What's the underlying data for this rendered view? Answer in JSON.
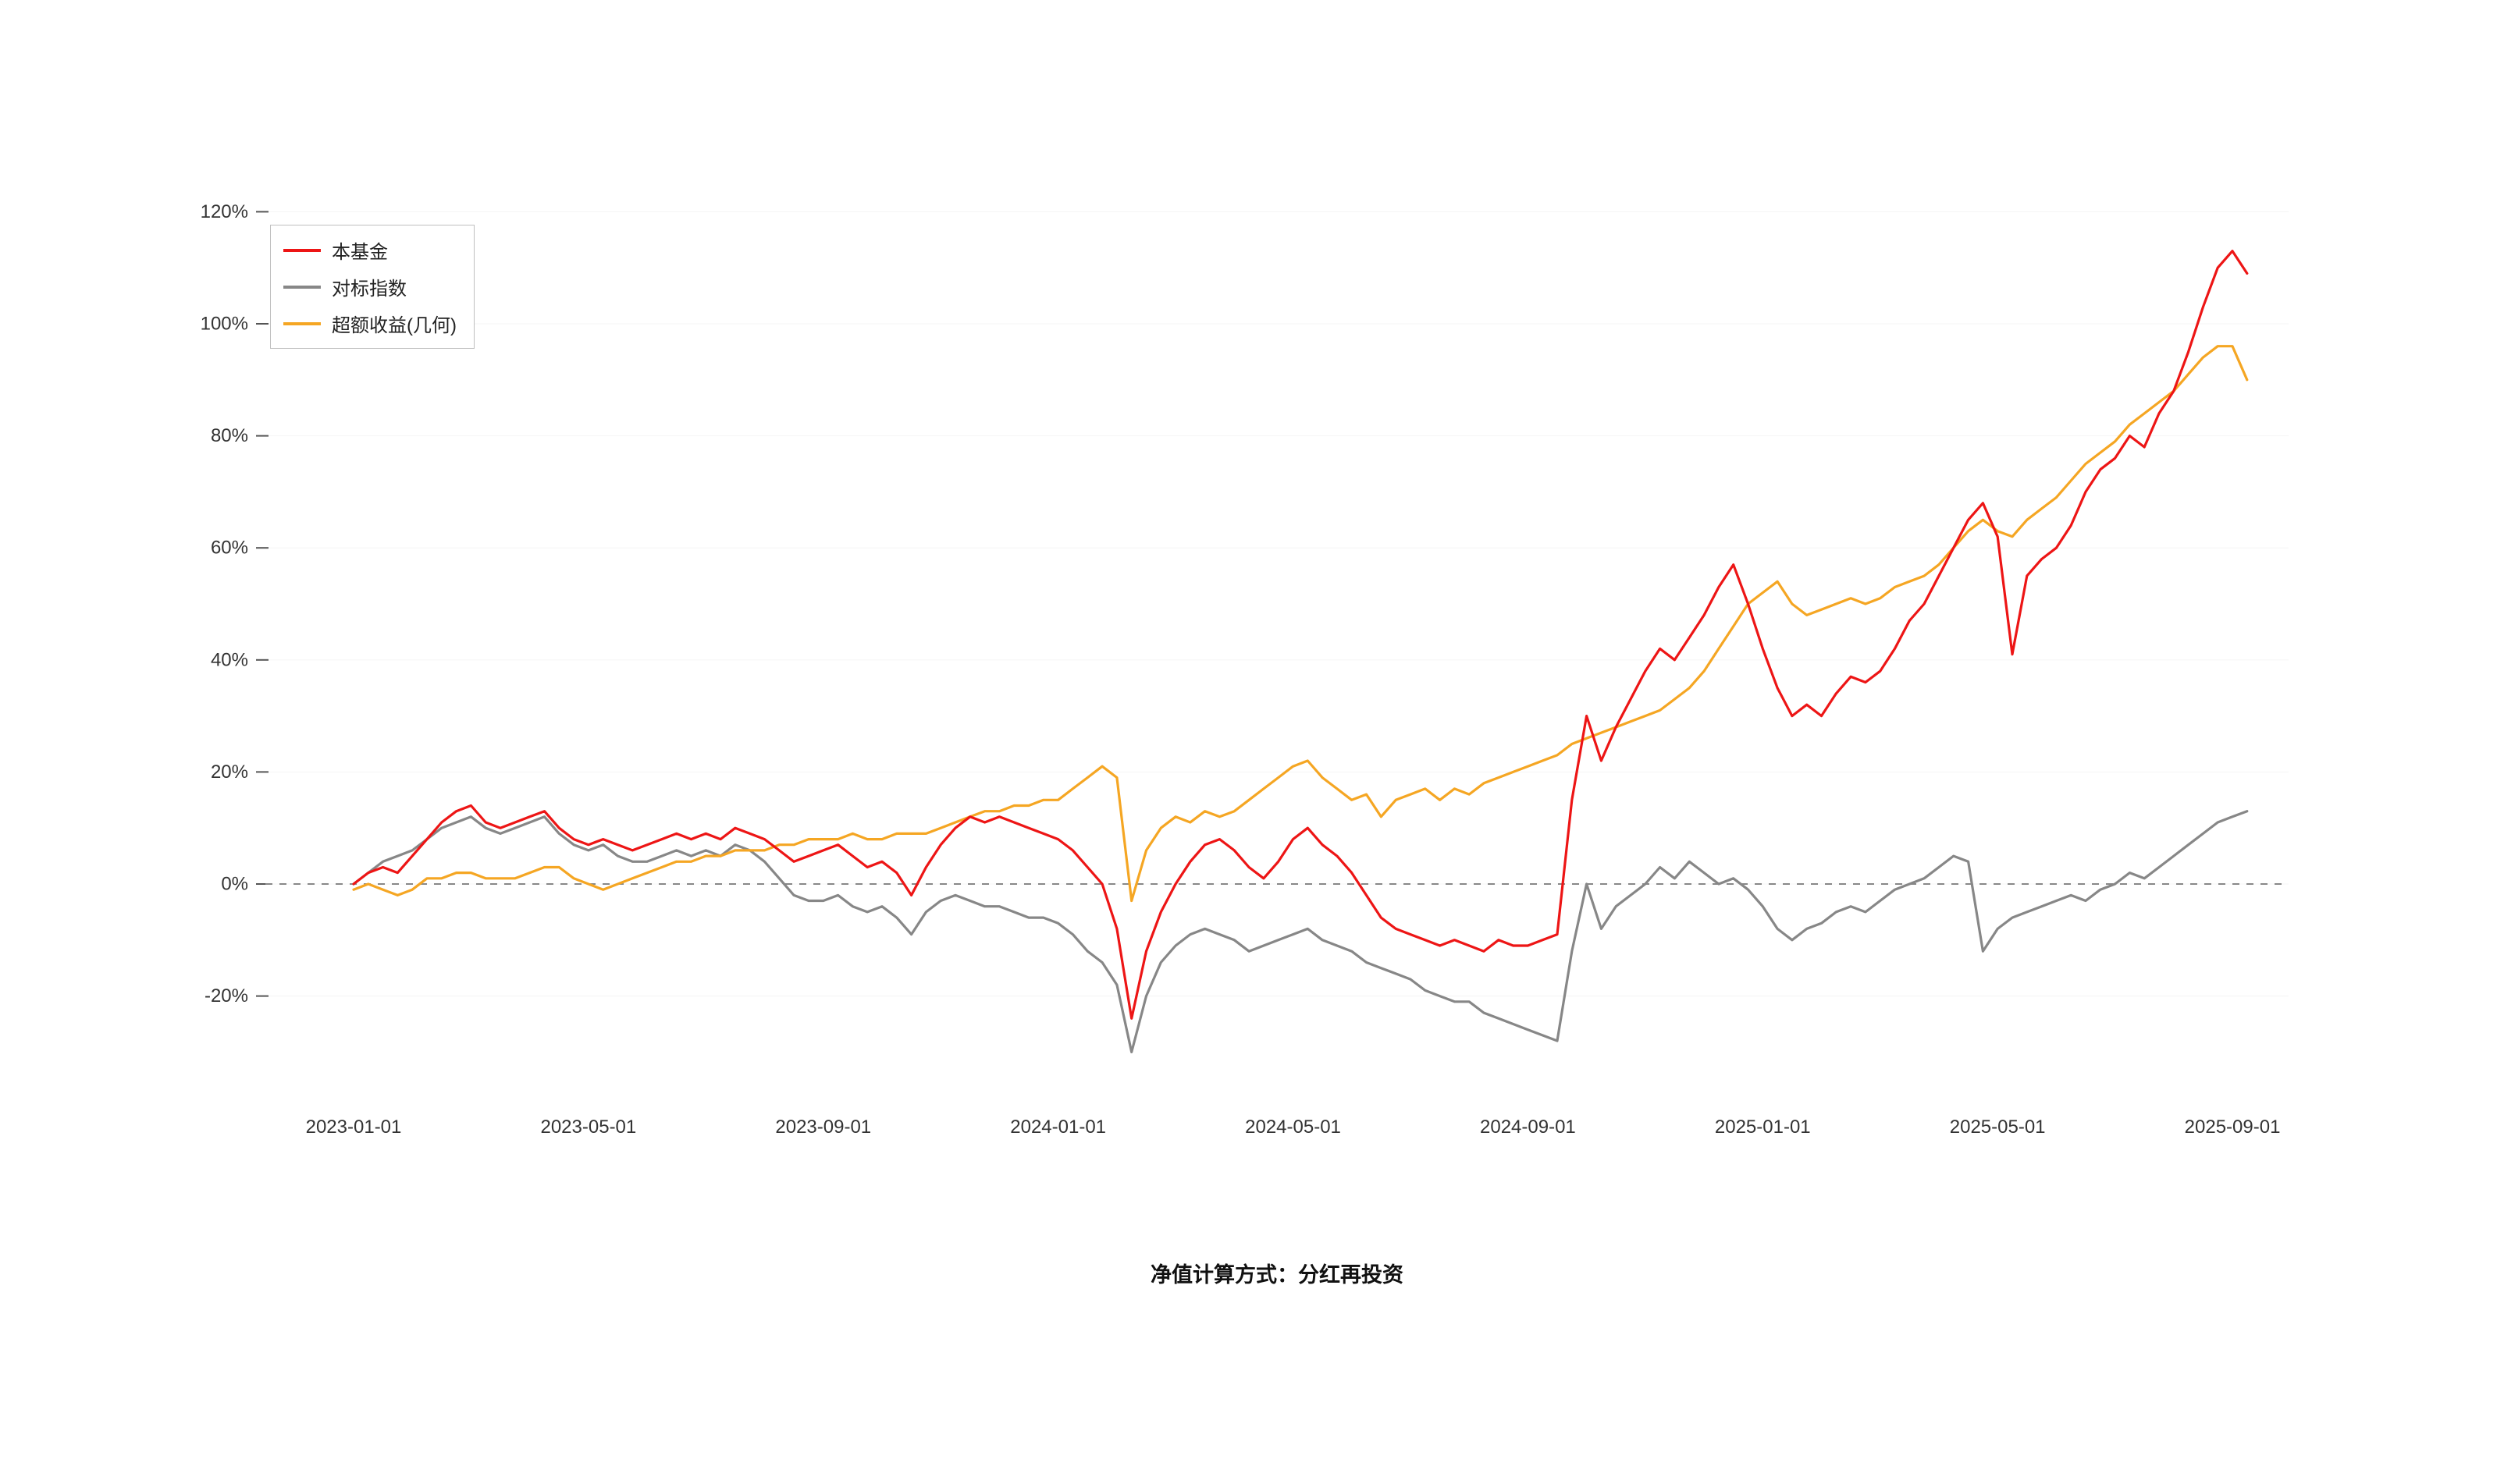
{
  "caption": "净值计算方式：分红再投资",
  "chart_data": {
    "type": "line",
    "title": "",
    "grid": "off",
    "legend_position": "top-left",
    "x_axis": {
      "start_date": "2023-01-01",
      "end_date": "2025-09-01",
      "tick_labels": [
        "2023-01-01",
        "2023-05-01",
        "2023-09-01",
        "2024-01-01",
        "2024-05-01",
        "2024-09-01",
        "2025-01-01",
        "2025-05-01",
        "2025-09-01"
      ],
      "tick_months": [
        0,
        4,
        8,
        12,
        16,
        20,
        24,
        28,
        32
      ],
      "samples_per_month": 4
    },
    "y_axis": {
      "ticks": [
        -20,
        0,
        20,
        40,
        60,
        80,
        100,
        120
      ],
      "tick_suffix": "%",
      "range": [
        -32,
        124
      ]
    },
    "zero_line": {
      "y": 0,
      "style": "dashed",
      "color": "#888888"
    },
    "series": [
      {
        "name": "本基金",
        "color": "#ed1515",
        "values": [
          0,
          2,
          3,
          2,
          5,
          8,
          11,
          13,
          14,
          11,
          10,
          11,
          12,
          13,
          10,
          8,
          7,
          8,
          7,
          6,
          7,
          8,
          9,
          8,
          9,
          8,
          10,
          9,
          8,
          6,
          4,
          5,
          6,
          7,
          5,
          3,
          4,
          2,
          -2,
          3,
          7,
          10,
          12,
          11,
          12,
          11,
          10,
          9,
          8,
          6,
          3,
          0,
          -8,
          -24,
          -12,
          -5,
          0,
          4,
          7,
          8,
          6,
          3,
          1,
          4,
          8,
          10,
          7,
          5,
          2,
          -2,
          -6,
          -8,
          -9,
          -10,
          -11,
          -10,
          -11,
          -12,
          -10,
          -11,
          -11,
          -10,
          -9,
          15,
          30,
          22,
          28,
          33,
          38,
          42,
          40,
          44,
          48,
          53,
          57,
          50,
          42,
          35,
          30,
          32,
          30,
          34,
          37,
          36,
          38,
          42,
          47,
          50,
          55,
          60,
          65,
          68,
          62,
          41,
          55,
          58,
          60,
          64,
          70,
          74,
          76,
          80,
          78,
          84,
          88,
          95,
          103,
          110,
          113,
          109
        ]
      },
      {
        "name": "对标指数",
        "color": "#878787",
        "values": [
          0,
          2,
          4,
          5,
          6,
          8,
          10,
          11,
          12,
          10,
          9,
          10,
          11,
          12,
          9,
          7,
          6,
          7,
          5,
          4,
          4,
          5,
          6,
          5,
          6,
          5,
          7,
          6,
          4,
          1,
          -2,
          -3,
          -3,
          -2,
          -4,
          -5,
          -4,
          -6,
          -9,
          -5,
          -3,
          -2,
          -3,
          -4,
          -4,
          -5,
          -6,
          -6,
          -7,
          -9,
          -12,
          -14,
          -18,
          -30,
          -20,
          -14,
          -11,
          -9,
          -8,
          -9,
          -10,
          -12,
          -11,
          -10,
          -9,
          -8,
          -10,
          -11,
          -12,
          -14,
          -15,
          -16,
          -17,
          -19,
          -20,
          -21,
          -21,
          -23,
          -24,
          -25,
          -26,
          -27,
          -28,
          -12,
          0,
          -8,
          -4,
          -2,
          0,
          3,
          1,
          4,
          2,
          0,
          1,
          -1,
          -4,
          -8,
          -10,
          -8,
          -7,
          -5,
          -4,
          -5,
          -3,
          -1,
          0,
          1,
          3,
          5,
          4,
          -12,
          -8,
          -6,
          -5,
          -4,
          -3,
          -2,
          -3,
          -1,
          0,
          2,
          1,
          3,
          5,
          7,
          9,
          11,
          12,
          13
        ]
      },
      {
        "name": "超额收益(几何)",
        "color": "#f5a623",
        "values": [
          -1,
          0,
          -1,
          -2,
          -1,
          1,
          1,
          2,
          2,
          1,
          1,
          1,
          2,
          3,
          3,
          1,
          0,
          -1,
          0,
          1,
          2,
          3,
          4,
          4,
          5,
          5,
          6,
          6,
          6,
          7,
          7,
          8,
          8,
          8,
          9,
          8,
          8,
          9,
          9,
          9,
          10,
          11,
          12,
          13,
          13,
          14,
          14,
          15,
          15,
          17,
          19,
          21,
          19,
          -3,
          6,
          10,
          12,
          11,
          13,
          12,
          13,
          15,
          17,
          19,
          21,
          22,
          19,
          17,
          15,
          16,
          12,
          15,
          16,
          17,
          15,
          17,
          16,
          18,
          19,
          20,
          21,
          22,
          23,
          25,
          26,
          27,
          28,
          29,
          30,
          31,
          33,
          35,
          38,
          42,
          46,
          50,
          52,
          54,
          50,
          48,
          49,
          50,
          51,
          50,
          51,
          53,
          54,
          55,
          57,
          60,
          63,
          65,
          63,
          62,
          65,
          67,
          69,
          72,
          75,
          77,
          79,
          82,
          84,
          86,
          88,
          91,
          94,
          96,
          96,
          90
        ]
      }
    ]
  }
}
